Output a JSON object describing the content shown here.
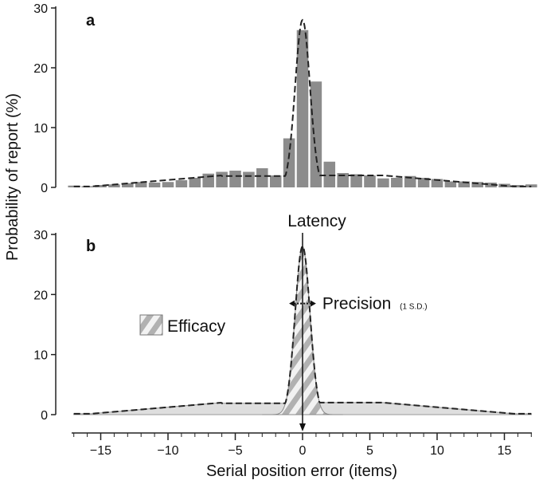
{
  "chart_data": {
    "type": "bar",
    "ylabel": "Probability of report (%)",
    "xlabel": "Serial position error (items)",
    "xlim": [
      -17,
      17
    ],
    "x_ticks": [
      -15,
      -10,
      -5,
      0,
      5,
      10,
      15
    ],
    "ylim": [
      0,
      30
    ],
    "y_ticks": [
      0,
      10,
      20,
      30
    ],
    "panels": [
      {
        "label": "a",
        "type": "bar",
        "x": [
          -17,
          -16,
          -15,
          -14,
          -13,
          -12,
          -11,
          -10,
          -9,
          -8,
          -7,
          -6,
          -5,
          -4,
          -3,
          -2,
          -1,
          0,
          1,
          2,
          3,
          4,
          5,
          6,
          7,
          8,
          9,
          10,
          11,
          12,
          13,
          14,
          15,
          16,
          17
        ],
        "values": [
          0.3,
          0.2,
          0.4,
          0.5,
          0.7,
          0.9,
          0.8,
          0.9,
          1.2,
          1.6,
          2.3,
          2.6,
          2.8,
          2.6,
          3.2,
          2.0,
          8.2,
          26.3,
          17.7,
          4.3,
          2.4,
          2.2,
          2.0,
          1.5,
          1.6,
          1.9,
          1.6,
          1.4,
          1.0,
          1.0,
          0.9,
          0.8,
          0.6,
          0.4,
          0.5
        ],
        "fit_curve": "dashed"
      },
      {
        "label": "b",
        "type": "area",
        "fit_curve": "dashed",
        "background_level": 2,
        "peak_value": 28,
        "peak_x": 0,
        "sd": 1,
        "annotations": {
          "latency": "Latency",
          "precision": "Precision",
          "precision_sub": "(1 S.D.)",
          "efficacy": "Efficacy"
        }
      }
    ]
  }
}
